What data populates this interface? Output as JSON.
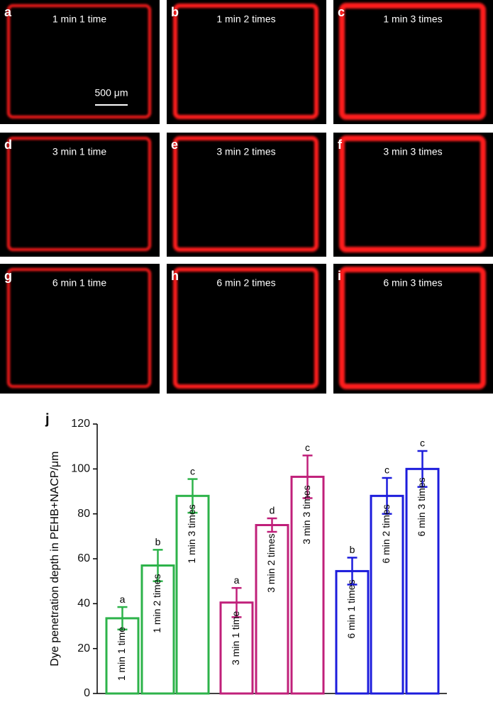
{
  "panels": [
    {
      "letter": "a",
      "caption": "1 min 1 time"
    },
    {
      "letter": "b",
      "caption": "1 min 2 times"
    },
    {
      "letter": "c",
      "caption": "1 min 3 times"
    },
    {
      "letter": "d",
      "caption": "3 min 1 time"
    },
    {
      "letter": "e",
      "caption": "3 min 2 times"
    },
    {
      "letter": "f",
      "caption": "3 min 3 times"
    },
    {
      "letter": "g",
      "caption": "6 min 1 time"
    },
    {
      "letter": "h",
      "caption": "6 min 2 times"
    },
    {
      "letter": "i",
      "caption": "6 min 3 times"
    }
  ],
  "scale_bar": "500 μm",
  "chart_data": {
    "type": "bar",
    "panel_letter": "j",
    "y_label": "Dye penetration depth in PEHB+NACP/μm",
    "categories": [
      "1 min 1 time",
      "1 min 2 times",
      "1 min 3 times",
      "3 min 1 time",
      "3 min 2 times",
      "3 min 3 times",
      "6 min 1 times",
      "6 min 2 times",
      "6 min 3 times"
    ],
    "values": [
      33.5,
      57,
      88,
      40.5,
      75,
      96.5,
      54.5,
      88,
      100
    ],
    "errors": [
      5,
      7,
      7.5,
      6.5,
      3,
      9.5,
      6,
      8,
      8
    ],
    "annotations": [
      "a",
      "b",
      "c",
      "a",
      "d",
      "c",
      "b",
      "c",
      "c"
    ],
    "colors": [
      "#2db34a",
      "#2db34a",
      "#2db34a",
      "#c0207a",
      "#c0207a",
      "#c0207a",
      "#1c1cdc",
      "#1c1cdc",
      "#1c1cdc"
    ],
    "ylim": [
      0,
      120
    ],
    "yticks": [
      0,
      20,
      40,
      60,
      80,
      100,
      120
    ]
  }
}
